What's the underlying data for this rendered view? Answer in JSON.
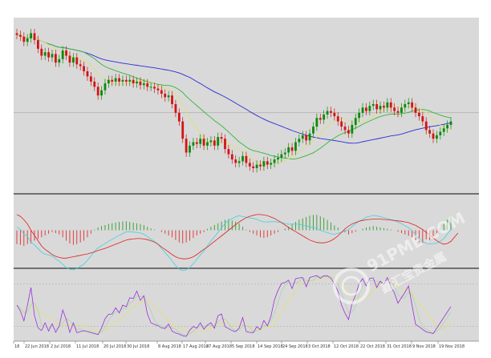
{
  "chart_data": {
    "type": "line",
    "title": "",
    "colors": {
      "background": "#d9d9d9",
      "candle_up": "#0b8a0b",
      "candle_down": "#d21414",
      "bull_wick": "#0b8a0b",
      "ma_slow": "#2b2bd6",
      "ma_mid": "#33b833",
      "ma_fast": "#e0e070",
      "macd_hist_pos": "#2e9e2e",
      "macd_hist_neg": "#e03030",
      "macd_signal": "#e02020",
      "macd_line": "#40d0e0",
      "stoch_k": "#9b30d9",
      "stoch_d": "#a8d8a8",
      "stoch_slow": "#e8e070",
      "separator": "#707070",
      "hline": "#999999"
    },
    "x_ticks": [
      "18",
      "22 Jun 2018",
      "2 Jul 2018",
      "11 Jul 2018",
      "20 Jul 2018",
      "30 Jul 2018",
      "8 Aug 2018",
      "17 Aug 2018",
      "27 Aug 2018",
      "5 Sep 2018",
      "14 Sep 2018",
      "24 Sep 2018",
      "3 Oct 2018",
      "12 Oct 2018",
      "22 Oct 2018",
      "31 Oct 2018",
      "9 Nov 2018",
      "19 Nov 2018"
    ],
    "price_panel": {
      "ylim": [
        0,
        100
      ],
      "hline": 45,
      "closes": [
        90,
        89,
        86,
        88,
        91,
        87,
        82,
        78,
        80,
        77,
        79,
        74,
        76,
        81,
        78,
        74,
        77,
        73,
        72,
        69,
        66,
        63,
        60,
        55,
        58,
        62,
        64,
        63,
        65,
        63,
        64,
        63,
        64,
        62,
        63,
        61,
        62,
        60,
        60,
        59,
        58,
        56,
        54,
        55,
        50,
        45,
        40,
        30,
        22,
        26,
        28,
        27,
        30,
        26,
        28,
        29,
        26,
        31,
        30,
        24,
        21,
        18,
        16,
        17,
        20,
        16,
        14,
        13,
        15,
        14,
        17,
        15,
        16,
        18,
        19,
        21,
        22,
        25,
        23,
        28,
        30,
        32,
        29,
        33,
        37,
        42,
        41,
        44,
        46,
        45,
        43,
        40,
        37,
        35,
        33,
        38,
        42,
        45,
        48,
        46,
        49,
        50,
        47,
        49,
        48,
        51,
        48,
        46,
        45,
        48,
        50,
        51,
        48,
        45,
        43,
        40,
        35,
        33,
        30,
        32,
        34,
        36,
        38,
        40
      ]
    },
    "macd_panel": {
      "ylim": [
        -100,
        100
      ],
      "histogram": [
        -40,
        -42,
        -45,
        -40,
        -38,
        -30,
        -25,
        -20,
        -15,
        -10,
        -5,
        -8,
        -12,
        -20,
        -30,
        -38,
        -42,
        -40,
        -35,
        -30,
        -20,
        -10,
        2,
        8,
        12,
        15,
        18,
        20,
        22,
        24,
        25,
        26,
        24,
        22,
        20,
        18,
        15,
        10,
        5,
        2,
        0,
        -5,
        -10,
        -15,
        -20,
        -28,
        -35,
        -38,
        -35,
        -30,
        -22,
        -15,
        -10,
        -5,
        4,
        10,
        15,
        20,
        25,
        30,
        32,
        28,
        25,
        20,
        10,
        2,
        -5,
        -10,
        -15,
        -20,
        -22,
        -20,
        -15,
        -10,
        -5,
        0,
        5,
        10,
        18,
        24,
        30,
        34,
        38,
        42,
        44,
        44,
        40,
        36,
        30,
        22,
        14,
        8,
        0,
        -6,
        -12,
        -8,
        -4,
        0,
        4,
        8,
        10,
        12,
        10,
        8,
        6,
        4,
        2,
        0,
        -4,
        -8,
        -12,
        -16,
        -22,
        -28,
        -34,
        -38,
        -35,
        -28,
        -18,
        -8,
        5,
        18,
        30,
        38
      ],
      "signal": [
        45,
        40,
        30,
        18,
        0,
        -15,
        -30,
        -45,
        -55,
        -62,
        -70,
        -75,
        -78,
        -80,
        -80,
        -78,
        -76,
        -74,
        -72,
        -70,
        -68,
        -65,
        -62,
        -58,
        -55,
        -52,
        -48,
        -44,
        -40,
        -36,
        -32,
        -28,
        -26,
        -25,
        -24,
        -24,
        -25,
        -27,
        -30,
        -34,
        -40,
        -48,
        -55,
        -62,
        -70,
        -76,
        -80,
        -82,
        -82,
        -80,
        -76,
        -70,
        -62,
        -55,
        -48,
        -40,
        -32,
        -24,
        -16,
        -8,
        0,
        8,
        16,
        24,
        30,
        36,
        40,
        43,
        45,
        45,
        44,
        42,
        38,
        34,
        28,
        22,
        15,
        8,
        2,
        -4,
        -10,
        -16,
        -22,
        -28,
        -32,
        -35,
        -36,
        -36,
        -34,
        -30,
        -24,
        -16,
        -6,
        4,
        12,
        18,
        22,
        26,
        28,
        30,
        31,
        32,
        32,
        32,
        31,
        30,
        29,
        28,
        27,
        26,
        24,
        22,
        18,
        14,
        8,
        2,
        -6,
        -14,
        -22,
        -30,
        -36,
        -40,
        -38,
        -32,
        -20,
        -8
      ]
    },
    "stoch_panel": {
      "ylim": [
        0,
        100
      ],
      "levels": [
        80,
        20
      ]
    }
  },
  "watermark": {
    "site": "91PME.COM",
    "tagline": "鑫汇宝贵金属"
  }
}
